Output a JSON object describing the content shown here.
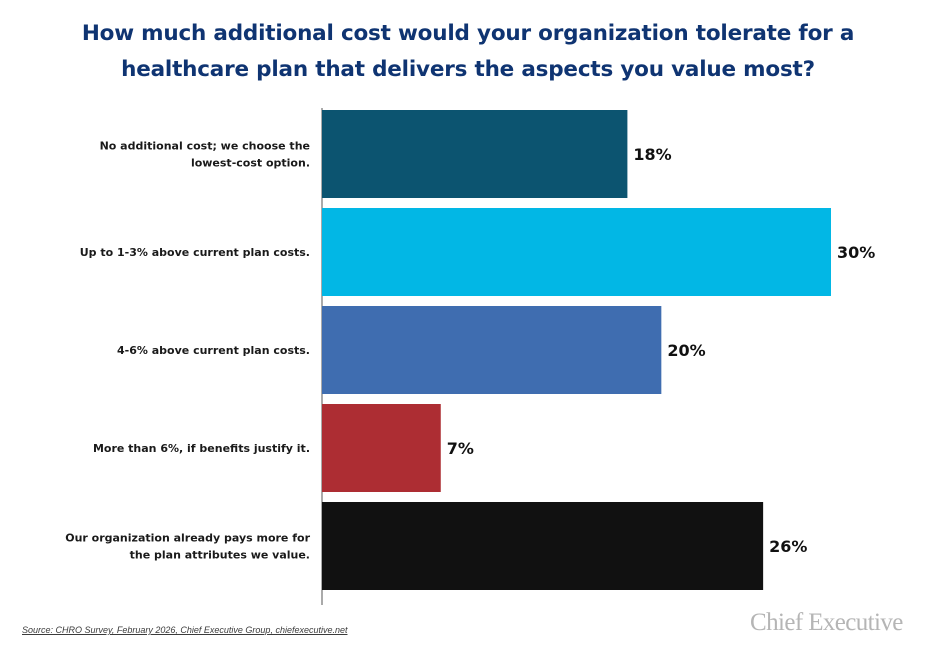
{
  "header": {
    "title_line1": "How much additional cost would your organization tolerate for a",
    "title_line2": "healthcare plan that delivers the aspects you value most?"
  },
  "chart_data": {
    "type": "bar",
    "orientation": "horizontal",
    "categories": [
      [
        "No additional cost; we choose the",
        "lowest-cost option."
      ],
      [
        "Up to 1-3% above current plan costs."
      ],
      [
        "4-6% above current plan costs."
      ],
      [
        "More than 6%, if benefits justify it."
      ],
      [
        "Our organization already pays more for",
        "the plan attributes we value."
      ]
    ],
    "values": [
      18,
      30,
      20,
      7,
      26
    ],
    "value_labels": [
      "18%",
      "30%",
      "20%",
      "7%",
      "26%"
    ],
    "colors": [
      "#0c5470",
      "#02b7e5",
      "#3f6db0",
      "#ad2d33",
      "#111111"
    ],
    "xlim": [
      0,
      30
    ],
    "grid": false,
    "legend": false
  },
  "footer": {
    "source": "Source: CHRO Survey, February 2026, Chief Executive Group, chiefexecutive.net",
    "brand": "Chief Executive"
  },
  "colors": {
    "title": "#0f3472",
    "axis": "#555555"
  }
}
